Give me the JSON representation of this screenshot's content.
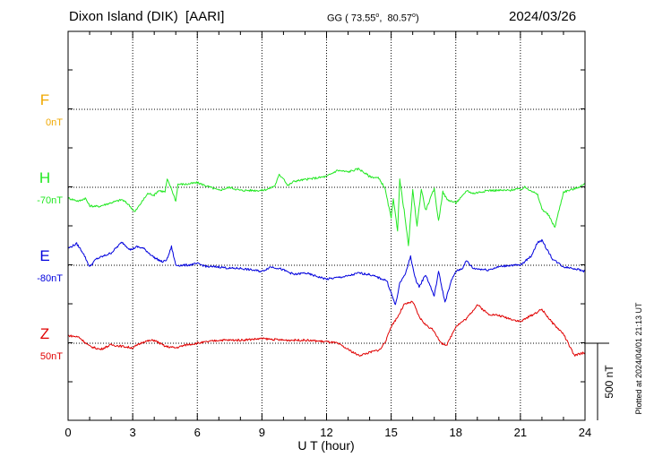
{
  "header": {
    "station": "Dixon Island (DIK)  [AARI]",
    "coords_prefix": "GG ( 73.55",
    "coords_mid": ",  80.57",
    "coords_suffix": ")",
    "date": "2024/03/26"
  },
  "side_note": "Plotted at 2024/04/01 21:13 UT",
  "colors": {
    "F": "#f0a800",
    "H": "#22e822",
    "E": "#0000dd",
    "Z": "#e00000"
  },
  "chart_data": {
    "type": "line",
    "title": "Dixon Island (DIK)  [AARI]",
    "xlabel": "U T (hour)",
    "xlim": [
      0,
      24
    ],
    "xticks": [
      "0",
      "3",
      "6",
      "9",
      "12",
      "15",
      "18",
      "21",
      "24"
    ],
    "scale_bar_label": "500 nT",
    "scale_bar_nT": 500,
    "grid": true,
    "series": [
      {
        "name": "F",
        "baseline_label": "0nT",
        "baseline_nT": 0,
        "points": []
      },
      {
        "name": "H",
        "baseline_label": "-70nT",
        "baseline_nT": -70,
        "points": [
          [
            0,
            -70
          ],
          [
            0.5,
            -90
          ],
          [
            0.8,
            -70
          ],
          [
            1,
            -120
          ],
          [
            1.4,
            -125
          ],
          [
            2,
            -100
          ],
          [
            2.5,
            -80
          ],
          [
            2.8,
            -110
          ],
          [
            3.1,
            -160
          ],
          [
            3.4,
            -100
          ],
          [
            3.7,
            -40
          ],
          [
            4,
            -50
          ],
          [
            4.2,
            -20
          ],
          [
            4.5,
            -30
          ],
          [
            4.6,
            50
          ],
          [
            4.8,
            -10
          ],
          [
            5,
            -90
          ],
          [
            5.1,
            20
          ],
          [
            5.5,
            20
          ],
          [
            6,
            30
          ],
          [
            6.3,
            15
          ],
          [
            7,
            -20
          ],
          [
            7.5,
            0
          ],
          [
            8,
            -20
          ],
          [
            8.5,
            -20
          ],
          [
            9,
            -20
          ],
          [
            9.3,
            -10
          ],
          [
            9.6,
            10
          ],
          [
            9.8,
            80
          ],
          [
            10,
            60
          ],
          [
            10.2,
            10
          ],
          [
            10.5,
            40
          ],
          [
            11,
            50
          ],
          [
            11.5,
            60
          ],
          [
            12,
            70
          ],
          [
            12.5,
            110
          ],
          [
            13,
            100
          ],
          [
            13.5,
            120
          ],
          [
            14,
            70
          ],
          [
            14.4,
            60
          ],
          [
            14.7,
            0
          ],
          [
            15,
            -200
          ],
          [
            15.1,
            -80
          ],
          [
            15.3,
            -280
          ],
          [
            15.4,
            50
          ],
          [
            15.6,
            -150
          ],
          [
            15.8,
            -380
          ],
          [
            16,
            -20
          ],
          [
            16.2,
            -250
          ],
          [
            16.4,
            -10
          ],
          [
            16.6,
            -150
          ],
          [
            16.8,
            -80
          ],
          [
            17,
            -10
          ],
          [
            17.2,
            -220
          ],
          [
            17.4,
            -30
          ],
          [
            17.6,
            -80
          ],
          [
            18,
            -100
          ],
          [
            18.3,
            -60
          ],
          [
            18.5,
            -20
          ],
          [
            18.8,
            -40
          ],
          [
            19.5,
            -20
          ],
          [
            20,
            -20
          ],
          [
            20.5,
            -20
          ],
          [
            20.8,
            -10
          ],
          [
            21,
            -15
          ],
          [
            21.2,
            0
          ],
          [
            21.5,
            -20
          ],
          [
            21.8,
            -50
          ],
          [
            22,
            -140
          ],
          [
            22.3,
            -180
          ],
          [
            22.6,
            -260
          ],
          [
            23,
            -30
          ],
          [
            23.5,
            -10
          ],
          [
            24,
            20
          ]
        ]
      },
      {
        "name": "E",
        "baseline_label": "-80nT",
        "baseline_nT": -80,
        "points": [
          [
            0,
            110
          ],
          [
            0.4,
            140
          ],
          [
            0.7,
            80
          ],
          [
            1,
            -10
          ],
          [
            1.3,
            40
          ],
          [
            2,
            80
          ],
          [
            2.5,
            150
          ],
          [
            2.9,
            100
          ],
          [
            3.2,
            120
          ],
          [
            3.5,
            110
          ],
          [
            4,
            50
          ],
          [
            4.4,
            20
          ],
          [
            4.6,
            40
          ],
          [
            4.8,
            120
          ],
          [
            5,
            0
          ],
          [
            5.5,
            0
          ],
          [
            6,
            10
          ],
          [
            6.5,
            -10
          ],
          [
            7,
            -10
          ],
          [
            7.5,
            -20
          ],
          [
            8,
            -20
          ],
          [
            8.5,
            -30
          ],
          [
            9,
            -40
          ],
          [
            9.4,
            -10
          ],
          [
            9.8,
            -20
          ],
          [
            10.5,
            -60
          ],
          [
            11,
            -50
          ],
          [
            11.5,
            -70
          ],
          [
            12,
            -90
          ],
          [
            12.5,
            -80
          ],
          [
            13,
            -70
          ],
          [
            13.5,
            -50
          ],
          [
            14,
            -60
          ],
          [
            14.4,
            -80
          ],
          [
            14.8,
            -100
          ],
          [
            15,
            -180
          ],
          [
            15.2,
            -260
          ],
          [
            15.4,
            -120
          ],
          [
            15.7,
            -40
          ],
          [
            15.9,
            60
          ],
          [
            16.1,
            -80
          ],
          [
            16.3,
            -140
          ],
          [
            16.6,
            -60
          ],
          [
            17,
            -200
          ],
          [
            17.2,
            -40
          ],
          [
            17.5,
            -240
          ],
          [
            17.8,
            -100
          ],
          [
            18,
            -40
          ],
          [
            18.3,
            -20
          ],
          [
            18.5,
            30
          ],
          [
            18.8,
            -20
          ],
          [
            19.5,
            -30
          ],
          [
            20,
            -10
          ],
          [
            20.5,
            0
          ],
          [
            21,
            0
          ],
          [
            21.5,
            60
          ],
          [
            21.8,
            150
          ],
          [
            22,
            160
          ],
          [
            22.5,
            40
          ],
          [
            23,
            -10
          ],
          [
            23.5,
            -20
          ],
          [
            24,
            -40
          ]
        ]
      },
      {
        "name": "Z",
        "baseline_label": "50nT",
        "baseline_nT": 50,
        "points": [
          [
            0,
            50
          ],
          [
            0.5,
            40
          ],
          [
            1,
            -20
          ],
          [
            1.5,
            -40
          ],
          [
            2,
            -10
          ],
          [
            2.5,
            -20
          ],
          [
            3,
            -30
          ],
          [
            3.5,
            10
          ],
          [
            4,
            20
          ],
          [
            4.5,
            -20
          ],
          [
            5,
            -30
          ],
          [
            5.5,
            -10
          ],
          [
            6,
            0
          ],
          [
            7,
            20
          ],
          [
            8,
            20
          ],
          [
            9,
            30
          ],
          [
            10,
            20
          ],
          [
            11,
            20
          ],
          [
            12,
            10
          ],
          [
            12.5,
            0
          ],
          [
            13,
            -40
          ],
          [
            13.5,
            -80
          ],
          [
            14,
            -60
          ],
          [
            14.5,
            -40
          ],
          [
            14.8,
            30
          ],
          [
            15,
            110
          ],
          [
            15.3,
            170
          ],
          [
            15.6,
            250
          ],
          [
            16,
            270
          ],
          [
            16.3,
            170
          ],
          [
            16.6,
            120
          ],
          [
            17,
            80
          ],
          [
            17.3,
            0
          ],
          [
            17.6,
            -10
          ],
          [
            18,
            110
          ],
          [
            18.5,
            160
          ],
          [
            19,
            250
          ],
          [
            19.5,
            190
          ],
          [
            20,
            180
          ],
          [
            20.5,
            160
          ],
          [
            21,
            140
          ],
          [
            21.5,
            180
          ],
          [
            22,
            220
          ],
          [
            22.5,
            130
          ],
          [
            23,
            60
          ],
          [
            23.5,
            -80
          ],
          [
            24,
            -60
          ]
        ]
      }
    ]
  }
}
